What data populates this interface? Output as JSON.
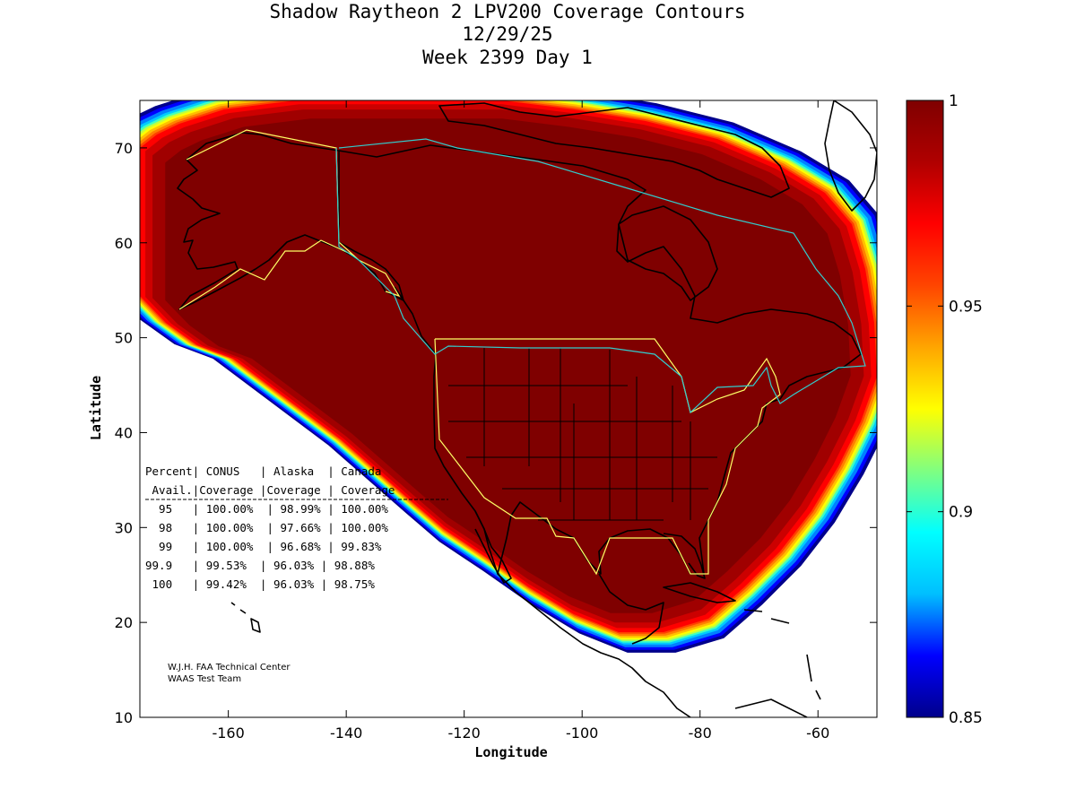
{
  "title": {
    "line1": "Shadow Raytheon 2 LPV200 Coverage Contours",
    "line2": "12/29/25",
    "line3": "Week 2399 Day 1"
  },
  "axes": {
    "xlabel": "Longitude",
    "ylabel": "Latitude",
    "x_range": [
      -175,
      -50
    ],
    "y_range": [
      10,
      75
    ],
    "x_ticks": [
      "-160",
      "-140",
      "-120",
      "-100",
      "-80",
      "-60"
    ],
    "x_tick_values": [
      -160,
      -140,
      -120,
      -100,
      -80,
      -60
    ],
    "y_ticks": [
      "10",
      "20",
      "30",
      "40",
      "50",
      "60",
      "70"
    ],
    "y_tick_values": [
      10,
      20,
      30,
      40,
      50,
      60,
      70
    ]
  },
  "colorbar": {
    "labels": [
      "1",
      "0.95",
      "0.9",
      "0.85"
    ],
    "label_values": [
      1.0,
      0.95,
      0.9,
      0.85
    ],
    "range": [
      0.85,
      1.0
    ],
    "colors": [
      "#00008b",
      "#0000ff",
      "#00bfff",
      "#00ffff",
      "#80ff80",
      "#ffff00",
      "#ffa500",
      "#ff4500",
      "#ff0000",
      "#b00000",
      "#7f0000"
    ]
  },
  "table": {
    "header1": "Percent| CONUS   | Alaska  | Canada",
    "header2": " Avail.|Coverage |Coverage | Coverage",
    "rows": [
      "  95   | 100.00%  | 98.99% | 100.00%",
      "  98   | 100.00%  | 97.66% | 100.00%",
      "  99   | 100.00%  | 96.68% | 99.83%",
      "99.9   | 99.53%  | 96.03% | 98.88%",
      " 100   | 99.42%  | 96.03% | 98.75%"
    ]
  },
  "credit": {
    "line1": "W.J.H. FAA Technical Center",
    "line2": "WAAS Test Team"
  },
  "map_colors": {
    "core": "#7f0000",
    "boundary_us": "#ffff66",
    "boundary_canada": "#33cccc",
    "coast": "#000000"
  }
}
